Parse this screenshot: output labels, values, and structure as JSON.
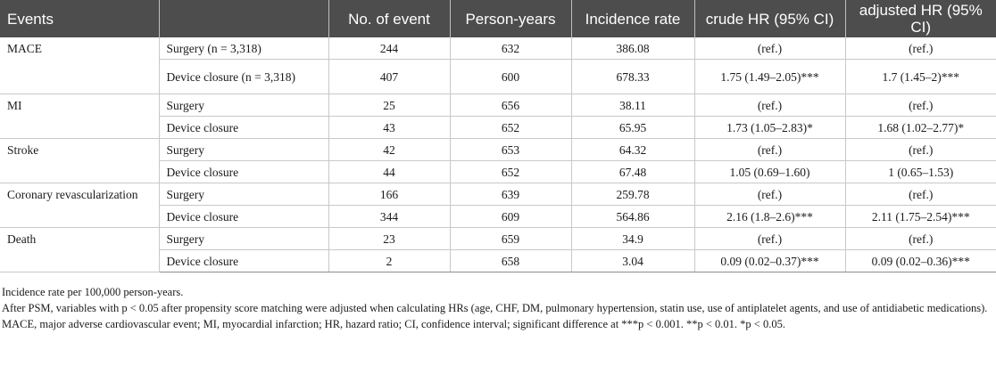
{
  "columns": [
    "Events",
    "",
    "No. of event",
    "Person-years",
    "Incidence rate",
    "crude HR (95% CI)",
    "adjusted HR (95% CI)"
  ],
  "rows": [
    {
      "event": "MACE",
      "group": "Surgery (n = 3,318)",
      "n": "244",
      "py": "632",
      "ir": "386.08",
      "crude": "(ref.)",
      "adj": "(ref.)"
    },
    {
      "group": "Device closure (n = 3,318)",
      "n": "407",
      "py": "600",
      "ir": "678.33",
      "crude": "1.75 (1.49–2.05)***",
      "adj": "1.7 (1.45–2)***"
    },
    {
      "event": "MI",
      "group": "Surgery",
      "n": "25",
      "py": "656",
      "ir": "38.11",
      "crude": "(ref.)",
      "adj": "(ref.)"
    },
    {
      "group": "Device closure",
      "n": "43",
      "py": "652",
      "ir": "65.95",
      "crude": "1.73 (1.05–2.83)*",
      "adj": "1.68 (1.02–2.77)*"
    },
    {
      "event": "Stroke",
      "group": "Surgery",
      "n": "42",
      "py": "653",
      "ir": "64.32",
      "crude": "(ref.)",
      "adj": "(ref.)"
    },
    {
      "group": "Device closure",
      "n": "44",
      "py": "652",
      "ir": "67.48",
      "crude": "1.05 (0.69–1.60)",
      "adj": "1 (0.65–1.53)"
    },
    {
      "event": "Coronary revascularization",
      "group": "Surgery",
      "n": "166",
      "py": "639",
      "ir": "259.78",
      "crude": "(ref.)",
      "adj": "(ref.)"
    },
    {
      "group": "Device closure",
      "n": "344",
      "py": "609",
      "ir": "564.86",
      "crude": "2.16 (1.8–2.6)***",
      "adj": "2.11 (1.75–2.54)***"
    },
    {
      "event": "Death",
      "group": "Surgery",
      "n": "23",
      "py": "659",
      "ir": "34.9",
      "crude": "(ref.)",
      "adj": "(ref.)"
    },
    {
      "group": "Device closure",
      "n": "2",
      "py": "658",
      "ir": "3.04",
      "crude": "0.09 (0.02–0.37)***",
      "adj": "0.09 (0.02–0.36)***"
    }
  ],
  "notes": [
    "Incidence rate per 100,000 person-years.",
    "After PSM, variables with p < 0.05 after propensity score matching were adjusted when calculating HRs (age, CHF, DM, pulmonary hypertension, statin use, use of antiplatelet agents, and use of antidiabetic medications).",
    "MACE, major adverse cardiovascular event; MI, myocardial infarction; HR, hazard ratio; CI, confidence interval; significant difference at ***p < 0.001. **p < 0.01. *p < 0.05."
  ]
}
